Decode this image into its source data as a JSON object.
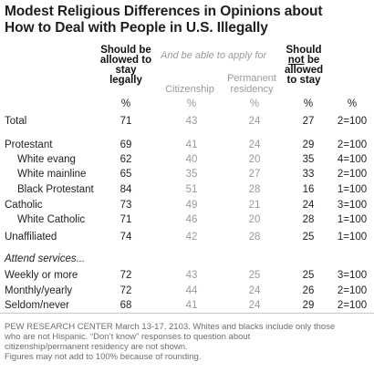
{
  "title_line1": "Modest Religious Differences in Opinions about",
  "title_line2": "How to Deal with People in U.S. Illegally",
  "headers": {
    "stay_legally": [
      "Should be",
      "allowed to",
      "stay",
      "legally"
    ],
    "apply_note": "And be able to apply for",
    "citizenship": "Citizenship",
    "permanent_residency": [
      "Permanent",
      "residency"
    ],
    "not_stay": [
      "Should",
      "not",
      "be",
      "allowed",
      "to stay"
    ],
    "pct": "%"
  },
  "section_label": "Attend services...",
  "footer": [
    "PEW RESEARCH CENTER March 13-17, 2103. Whites and blacks include only those",
    "who are not Hispanic. “Don’t know” responses to question about",
    "citizenship/permanent residency are not shown.",
    "Figures may not add to 100% because of rounding."
  ],
  "colors": {
    "primary_text": "#222222",
    "secondary_text": "#9a9a9a",
    "footer_text": "#6e6e6e"
  },
  "chart_data": {
    "type": "table",
    "title": "Modest Religious Differences in Opinions about How to Deal with People in U.S. Illegally",
    "columns": [
      "Should be allowed to stay legally",
      "Citizenship",
      "Permanent residency",
      "Should not be allowed to stay",
      ""
    ],
    "units_row": [
      "%",
      "%",
      "%",
      "%",
      "%"
    ],
    "rows": [
      {
        "label": "Total",
        "indent": false,
        "values": [
          "71",
          "43",
          "24",
          "27",
          "2=100"
        ]
      },
      {
        "label": "Protestant",
        "indent": false,
        "values": [
          "69",
          "41",
          "24",
          "29",
          "2=100"
        ]
      },
      {
        "label": "White evang",
        "indent": true,
        "values": [
          "62",
          "40",
          "20",
          "35",
          "4=100"
        ]
      },
      {
        "label": "White mainline",
        "indent": true,
        "values": [
          "65",
          "35",
          "27",
          "33",
          "2=100"
        ]
      },
      {
        "label": "Black Protestant",
        "indent": true,
        "values": [
          "84",
          "51",
          "28",
          "16",
          "1=100"
        ]
      },
      {
        "label": "Catholic",
        "indent": false,
        "values": [
          "73",
          "49",
          "21",
          "24",
          "3=100"
        ]
      },
      {
        "label": "White Catholic",
        "indent": true,
        "values": [
          "71",
          "46",
          "20",
          "28",
          "1=100"
        ]
      },
      {
        "label": "Unaffiliated",
        "indent": false,
        "values": [
          "74",
          "42",
          "28",
          "25",
          "1=100"
        ]
      },
      {
        "label": "Weekly or more",
        "indent": false,
        "values": [
          "72",
          "43",
          "25",
          "25",
          "3=100"
        ]
      },
      {
        "label": "Monthly/yearly",
        "indent": false,
        "values": [
          "72",
          "44",
          "24",
          "26",
          "2=100"
        ]
      },
      {
        "label": "Seldom/never",
        "indent": false,
        "values": [
          "68",
          "41",
          "24",
          "29",
          "2=100"
        ]
      }
    ]
  }
}
